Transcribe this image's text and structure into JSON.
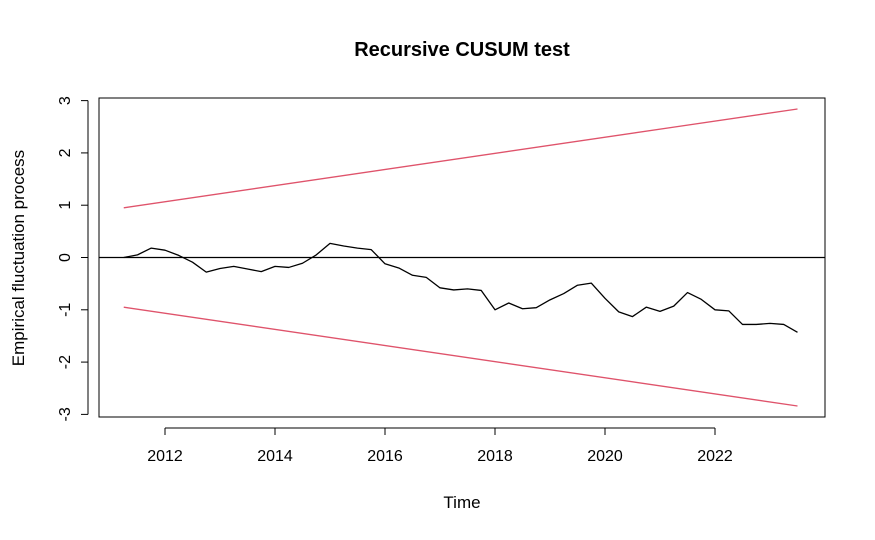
{
  "chart_data": {
    "type": "line",
    "title": "Recursive CUSUM test",
    "xlabel": "Time",
    "ylabel": "Empirical fluctuation process",
    "xlim": [
      2010.8,
      2024.0
    ],
    "ylim": [
      -3.05,
      3.05
    ],
    "x_ticks": [
      2012,
      2014,
      2016,
      2018,
      2020,
      2022
    ],
    "x_tick_labels": [
      "2012",
      "2014",
      "2016",
      "2018",
      "2020",
      "2022"
    ],
    "y_ticks": [
      -3,
      -2,
      -1,
      0,
      1,
      2,
      3
    ],
    "y_tick_labels": [
      "-3",
      "-2",
      "-1",
      "0",
      "1",
      "2",
      "3"
    ],
    "grid": false,
    "reference_line": {
      "y": 0,
      "color": "#000000"
    },
    "series": [
      {
        "role": "process",
        "color": "#000000",
        "x": [
          2011.25,
          2011.5,
          2011.75,
          2012.0,
          2012.25,
          2012.5,
          2012.75,
          2013.0,
          2013.25,
          2013.5,
          2013.75,
          2014.0,
          2014.25,
          2014.5,
          2014.75,
          2015.0,
          2015.25,
          2015.5,
          2015.75,
          2016.0,
          2016.25,
          2016.5,
          2016.75,
          2017.0,
          2017.25,
          2017.5,
          2017.75,
          2018.0,
          2018.25,
          2018.5,
          2018.75,
          2019.0,
          2019.25,
          2019.5,
          2019.75,
          2020.0,
          2020.25,
          2020.5,
          2020.75,
          2021.0,
          2021.25,
          2021.5,
          2021.75,
          2022.0,
          2022.25,
          2022.5,
          2022.75,
          2023.0,
          2023.25,
          2023.5
        ],
        "y": [
          0.0,
          0.05,
          0.18,
          0.14,
          0.04,
          -0.09,
          -0.28,
          -0.21,
          -0.17,
          -0.22,
          -0.27,
          -0.17,
          -0.19,
          -0.11,
          0.05,
          0.27,
          0.22,
          0.18,
          0.15,
          -0.12,
          -0.2,
          -0.34,
          -0.38,
          -0.58,
          -0.62,
          -0.6,
          -0.63,
          -1.0,
          -0.87,
          -0.98,
          -0.96,
          -0.81,
          -0.69,
          -0.53,
          -0.49,
          -0.78,
          -1.04,
          -1.13,
          -0.95,
          -1.03,
          -0.93,
          -0.67,
          -0.8,
          -1.0,
          -1.02,
          -1.28,
          -1.28,
          -1.26,
          -1.28,
          -1.43
        ]
      },
      {
        "role": "upper-boundary",
        "color": "#DF536B",
        "x": [
          2011.25,
          2023.5
        ],
        "y": [
          0.95,
          2.84
        ]
      },
      {
        "role": "lower-boundary",
        "color": "#DF536B",
        "x": [
          2011.25,
          2023.5
        ],
        "y": [
          -0.95,
          -2.84
        ]
      }
    ]
  }
}
